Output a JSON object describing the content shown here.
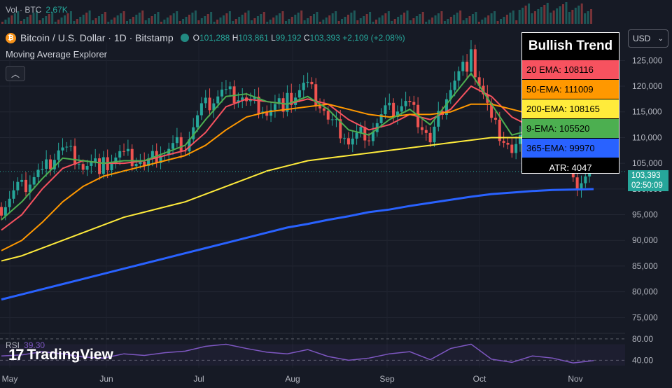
{
  "header": {
    "volume_label": "Vol · BTC",
    "volume_value": "2.67K",
    "symbol": "Bitcoin / U.S. Dollar · 1D · Bitstamp",
    "ohlc": {
      "o_label": "O",
      "o": "101,288",
      "h_label": "H",
      "h": "103,861",
      "l_label": "L",
      "l": "99,192",
      "c_label": "C",
      "c": "103,393",
      "change": "+2,109 (+2.08%)"
    },
    "indicator_name": "Moving Average Explorer",
    "collapse_icon": "chevron-up-icon"
  },
  "currency_selector": {
    "value": "USD"
  },
  "legend": {
    "title": "Bullish Trend",
    "rows": [
      {
        "label": "20 EMA: 108116",
        "color": "#f7525f"
      },
      {
        "label": "50-EMA: 111009",
        "color": "#ff9800"
      },
      {
        "label": "200-EMA: 108165",
        "color": "#ffeb3b"
      },
      {
        "label": "9-EMA: 105520",
        "color": "#4caf50"
      },
      {
        "label": "365-EMA: 99970",
        "color": "#2962ff"
      }
    ],
    "atr": "ATR: 4047"
  },
  "price_tag": {
    "price": "103,393",
    "countdown": "02:50:09",
    "color": "#26a69a"
  },
  "rsi": {
    "label": "RSI",
    "value": "39.30",
    "ticks": [
      "80.00",
      "40.00"
    ]
  },
  "brand": {
    "name": "TradingView"
  },
  "colors": {
    "up": "#26a69a",
    "down": "#ef5350",
    "background": "#161a25"
  },
  "chart_data": {
    "type": "line",
    "title": "Bitcoin / U.S. Dollar · 1D · Bitstamp",
    "x_labels": [
      "May",
      "Jun",
      "Jul",
      "Aug",
      "Sep",
      "Oct",
      "Nov"
    ],
    "y_ticks": [
      "125,000",
      "120,000",
      "115,000",
      "110,000",
      "105,000",
      "100,000",
      "95,000",
      "90,000",
      "85,000",
      "80,000",
      "75,000"
    ],
    "ylim": [
      73000,
      127500
    ],
    "price_series": [
      {
        "month": "May 1",
        "close": 96500
      },
      {
        "month": "May 8",
        "close": 100500
      },
      {
        "month": "May 15",
        "close": 103500
      },
      {
        "month": "May 22",
        "close": 108500
      },
      {
        "month": "May 29",
        "close": 105000
      },
      {
        "month": "Jun 5",
        "close": 104500
      },
      {
        "month": "Jun 12",
        "close": 106500
      },
      {
        "month": "Jun 19",
        "close": 104500
      },
      {
        "month": "Jun 26",
        "close": 107500
      },
      {
        "month": "Jul 3",
        "close": 109000
      },
      {
        "month": "Jul 10",
        "close": 116500
      },
      {
        "month": "Jul 17",
        "close": 119000
      },
      {
        "month": "Jul 24",
        "close": 117500
      },
      {
        "month": "Jul 31",
        "close": 115500
      },
      {
        "month": "Aug 7",
        "close": 117000
      },
      {
        "month": "Aug 14",
        "close": 120000
      },
      {
        "month": "Aug 21",
        "close": 113500
      },
      {
        "month": "Aug 28",
        "close": 109500
      },
      {
        "month": "Sep 4",
        "close": 111000
      },
      {
        "month": "Sep 11",
        "close": 115500
      },
      {
        "month": "Sep 18",
        "close": 116500
      },
      {
        "month": "Sep 25",
        "close": 109500
      },
      {
        "month": "Oct 2",
        "close": 120500
      },
      {
        "month": "Oct 6",
        "close": 125500
      },
      {
        "month": "Oct 10",
        "close": 113000
      },
      {
        "month": "Oct 17",
        "close": 107000
      },
      {
        "month": "Oct 24",
        "close": 111500
      },
      {
        "month": "Oct 31",
        "close": 109500
      },
      {
        "month": "Nov 5",
        "close": 101000
      },
      {
        "month": "Nov 7",
        "close": 103393
      }
    ],
    "series": [
      {
        "name": "20 EMA",
        "color": "#f7525f",
        "values": [
          92000,
          95000,
          100000,
          104000,
          105500,
          105000,
          105000,
          105500,
          106500,
          107500,
          111000,
          116000,
          117500,
          117000,
          116500,
          117500,
          116500,
          113500,
          111500,
          112500,
          114500,
          113500,
          115500,
          120000,
          118000,
          114000,
          112000,
          111500,
          108500,
          108116
        ]
      },
      {
        "name": "50-EMA",
        "color": "#ff9800",
        "values": [
          88000,
          90000,
          93500,
          97500,
          100500,
          102500,
          103500,
          104500,
          105500,
          106500,
          108500,
          111500,
          114000,
          115000,
          115500,
          116000,
          116500,
          115500,
          114500,
          114000,
          114500,
          114500,
          115000,
          116500,
          116500,
          115500,
          114500,
          113000,
          111500,
          111009
        ]
      },
      {
        "name": "200-EMA",
        "color": "#ffeb3b",
        "values": [
          86000,
          87000,
          88500,
          90000,
          91500,
          93000,
          94500,
          95500,
          96500,
          97500,
          99000,
          100500,
          102000,
          103500,
          104500,
          105500,
          106000,
          106500,
          107000,
          107500,
          108000,
          108500,
          109000,
          109500,
          110000,
          110000,
          110000,
          109500,
          108500,
          108165
        ]
      },
      {
        "name": "9-EMA",
        "color": "#4caf50",
        "values": [
          94000,
          97500,
          102000,
          106000,
          105500,
          105000,
          105500,
          105500,
          107000,
          108500,
          113500,
          118000,
          118500,
          117000,
          116500,
          118000,
          115500,
          111500,
          110500,
          113500,
          115500,
          112500,
          117500,
          122500,
          116500,
          110500,
          111500,
          110500,
          104500,
          105520
        ]
      },
      {
        "name": "365-EMA",
        "color": "#2962ff",
        "values": [
          78500,
          79500,
          80500,
          81500,
          82500,
          83500,
          84500,
          85500,
          86500,
          87500,
          88500,
          89500,
          90500,
          91500,
          92500,
          93200,
          94000,
          94700,
          95500,
          96000,
          96700,
          97300,
          97900,
          98500,
          99000,
          99300,
          99600,
          99800,
          99900,
          99970
        ]
      }
    ],
    "rsi_values": [
      48,
      50,
      56,
      52,
      46,
      44,
      52,
      49,
      54,
      57,
      66,
      70,
      62,
      55,
      52,
      60,
      47,
      40,
      44,
      52,
      56,
      41,
      62,
      70,
      42,
      36,
      48,
      44,
      35,
      39.3
    ]
  }
}
